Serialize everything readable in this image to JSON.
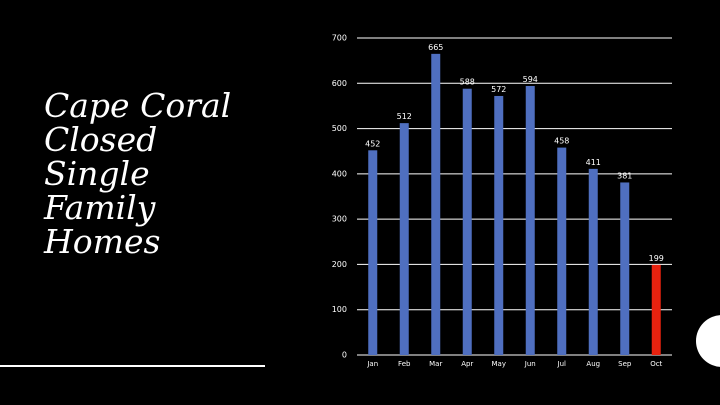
{
  "chart_data": {
    "type": "bar",
    "title_lines": [
      "Cape Coral",
      "Closed",
      "Single",
      "Family",
      "Homes"
    ],
    "categories": [
      "Jan",
      "Feb",
      "Mar",
      "Apr",
      "May",
      "Jun",
      "Jul",
      "Aug",
      "Sep",
      "Oct"
    ],
    "values": [
      452,
      512,
      665,
      588,
      572,
      594,
      458,
      411,
      381,
      199
    ],
    "colors": [
      "#4f6fc0",
      "#4f6fc0",
      "#4f6fc0",
      "#4f6fc0",
      "#4f6fc0",
      "#4f6fc0",
      "#4f6fc0",
      "#4f6fc0",
      "#4f6fc0",
      "#e8220f"
    ],
    "ylim": [
      0,
      700
    ],
    "yticks": [
      0,
      100,
      200,
      300,
      400,
      500,
      600,
      700
    ],
    "grid": true
  }
}
